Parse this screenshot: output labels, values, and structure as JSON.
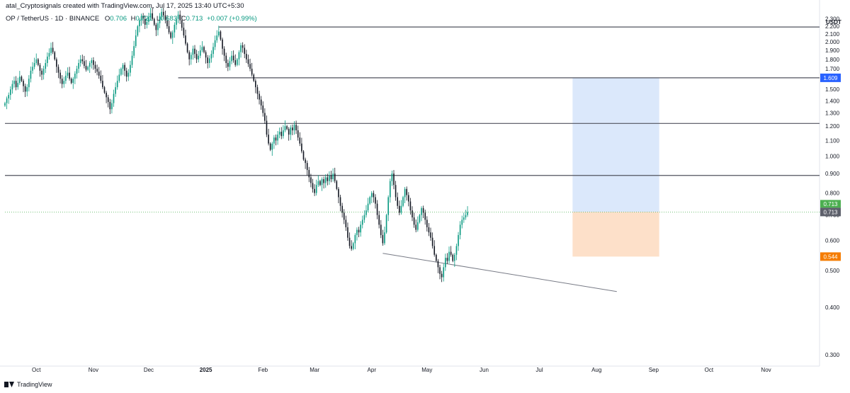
{
  "header": {
    "attribution": "atal_Cryptosignals created with TradingView.com, Jul 17, 2025 13:40 UTC+5:30",
    "symbol": "OP / TetherUS · 1D · BINANCE",
    "open_label": "O",
    "open": "0.706",
    "high_label": "H",
    "high": "0.721",
    "low_label": "L",
    "low": "0.683",
    "close_label": "C",
    "close": "0.713",
    "change": "+0.007 (+0.99%)"
  },
  "footer": {
    "brand": "TradingView"
  },
  "colors": {
    "up": "#089981",
    "down": "#131722",
    "target_zone": "#dbe8fb",
    "stop_zone": "#fde0c9",
    "last_price": "#4caf50",
    "line": "#50535e"
  },
  "chart_data": {
    "type": "candlestick",
    "title": "OP / TetherUS · 1D · BINANCE",
    "ylabel": "USDT",
    "y_scale": "log",
    "ylim": [
      0.28,
      2.45
    ],
    "y_ticks": [
      0.3,
      0.4,
      0.5,
      0.6,
      0.7,
      0.8,
      0.9,
      1.0,
      1.1,
      1.2,
      1.3,
      1.4,
      1.5,
      1.6,
      1.7,
      1.8,
      1.9,
      2.0,
      2.1,
      2.2,
      2.3
    ],
    "y_tick_labels": [
      "0.300",
      "0.400",
      "0.500",
      "0.600",
      "0.700",
      "0.800",
      "0.900",
      "1.000",
      "1.100",
      "1.200",
      "1.300",
      "1.400",
      "1.500",
      "1.600",
      "1.700",
      "1.800",
      "1.900",
      "2.000",
      "2.100",
      "2.200",
      "2.300"
    ],
    "x_range": [
      "2024-09-14",
      "2025-11-30"
    ],
    "x_ticks": [
      {
        "date": "2024-10-01",
        "label": "Oct",
        "bold": false
      },
      {
        "date": "2024-11-01",
        "label": "Nov",
        "bold": false
      },
      {
        "date": "2024-12-01",
        "label": "Dec",
        "bold": false
      },
      {
        "date": "2025-01-01",
        "label": "2025",
        "bold": true
      },
      {
        "date": "2025-02-01",
        "label": "Feb",
        "bold": false
      },
      {
        "date": "2025-03-01",
        "label": "Mar",
        "bold": false
      },
      {
        "date": "2025-04-01",
        "label": "Apr",
        "bold": false
      },
      {
        "date": "2025-05-01",
        "label": "May",
        "bold": false
      },
      {
        "date": "2025-06-01",
        "label": "Jun",
        "bold": false
      },
      {
        "date": "2025-07-01",
        "label": "Jul",
        "bold": false
      },
      {
        "date": "2025-08-01",
        "label": "Aug",
        "bold": false
      },
      {
        "date": "2025-09-01",
        "label": "Sep",
        "bold": false
      },
      {
        "date": "2025-10-01",
        "label": "Oct",
        "bold": false
      },
      {
        "date": "2025-11-01",
        "label": "Nov",
        "bold": false
      }
    ],
    "series": [
      {
        "first_date": "2024-09-14",
        "closes": [
          1.38,
          1.42,
          1.45,
          1.5,
          1.55,
          1.58,
          1.52,
          1.56,
          1.62,
          1.58,
          1.53,
          1.48,
          1.52,
          1.6,
          1.68,
          1.72,
          1.76,
          1.8,
          1.74,
          1.68,
          1.64,
          1.7,
          1.76,
          1.83,
          1.87,
          1.93,
          1.88,
          1.8,
          1.72,
          1.66,
          1.6,
          1.55,
          1.58,
          1.63,
          1.66,
          1.6,
          1.56,
          1.6,
          1.65,
          1.7,
          1.76,
          1.8,
          1.78,
          1.73,
          1.69,
          1.72,
          1.76,
          1.79,
          1.74,
          1.7,
          1.67,
          1.63,
          1.58,
          1.52,
          1.47,
          1.43,
          1.39,
          1.33,
          1.38,
          1.46,
          1.52,
          1.58,
          1.64,
          1.7,
          1.74,
          1.68,
          1.62,
          1.66,
          1.74,
          1.84,
          1.95,
          2.08,
          2.2,
          2.28,
          2.34,
          2.3,
          2.22,
          2.26,
          2.32,
          2.38,
          2.3,
          2.22,
          2.15,
          2.24,
          2.34,
          2.4,
          2.35,
          2.28,
          2.2,
          2.12,
          2.05,
          2.12,
          2.22,
          2.3,
          2.36,
          2.28,
          2.18,
          2.08,
          1.98,
          1.88,
          1.8,
          1.85,
          1.92,
          1.86,
          1.8,
          1.84,
          1.9,
          1.94,
          1.88,
          1.82,
          1.76,
          1.81,
          1.86,
          1.94,
          2.02,
          2.08,
          2.13,
          2.03,
          1.92,
          1.84,
          1.76,
          1.72,
          1.78,
          1.84,
          1.79,
          1.74,
          1.8,
          1.88,
          1.96,
          1.93,
          1.86,
          1.8,
          1.75,
          1.7,
          1.64,
          1.58,
          1.52,
          1.46,
          1.41,
          1.36,
          1.3,
          1.24,
          1.14,
          1.08,
          1.04,
          1.08,
          1.12,
          1.1,
          1.14,
          1.16,
          1.13,
          1.17,
          1.2,
          1.18,
          1.14,
          1.19,
          1.17,
          1.21,
          1.17,
          1.12,
          1.08,
          1.03,
          0.98,
          0.96,
          0.92,
          0.88,
          0.85,
          0.82,
          0.8,
          0.84,
          0.86,
          0.84,
          0.87,
          0.85,
          0.88,
          0.86,
          0.89,
          0.87,
          0.9,
          0.86,
          0.82,
          0.78,
          0.74,
          0.71,
          0.68,
          0.65,
          0.61,
          0.58,
          0.57,
          0.59,
          0.62,
          0.64,
          0.63,
          0.66,
          0.68,
          0.7,
          0.72,
          0.75,
          0.78,
          0.8,
          0.78,
          0.75,
          0.7,
          0.66,
          0.62,
          0.59,
          0.63,
          0.7,
          0.78,
          0.86,
          0.9,
          0.84,
          0.78,
          0.74,
          0.71,
          0.74,
          0.78,
          0.82,
          0.79,
          0.76,
          0.72,
          0.69,
          0.66,
          0.64,
          0.67,
          0.7,
          0.73,
          0.71,
          0.68,
          0.65,
          0.63,
          0.61,
          0.58,
          0.55,
          0.53,
          0.51,
          0.49,
          0.48,
          0.51,
          0.54,
          0.53,
          0.56,
          0.55,
          0.53,
          0.55,
          0.58,
          0.62,
          0.66,
          0.68,
          0.69,
          0.7,
          0.713
        ],
        "last_close": 0.713
      }
    ],
    "horizontal_levels": [
      {
        "price": 2.19,
        "from": "2025-01-08"
      },
      {
        "price": 1.609,
        "from": "2024-12-17",
        "label": "1.609"
      },
      {
        "price": 1.22
      },
      {
        "price": 0.89
      }
    ],
    "current_price_label": "0.713",
    "support_line": {
      "start": [
        "2025-04-07",
        0.555
      ],
      "end": [
        "2025-08-12",
        0.44
      ]
    },
    "position": {
      "start_date": "2025-07-19",
      "end_date": "2025-09-04",
      "entry": 0.713,
      "target": 1.609,
      "stop": 0.544,
      "entry_label": "0.713",
      "stop_label": "0.544"
    }
  }
}
